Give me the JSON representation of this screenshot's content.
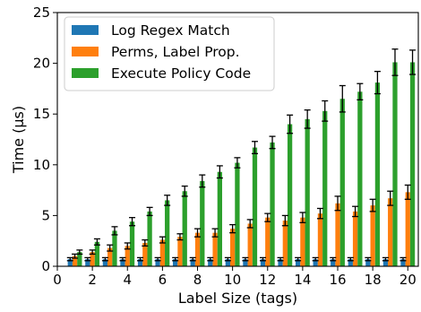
{
  "chart_data": {
    "type": "bar",
    "xlabel": "Label Size (tags)",
    "ylabel": "Time (µs)",
    "xlim": [
      0,
      20.6
    ],
    "ylim": [
      0,
      25
    ],
    "xticks": [
      "0",
      "2",
      "4",
      "6",
      "8",
      "10",
      "12",
      "14",
      "16",
      "18",
      "20"
    ],
    "yticks": [
      "0",
      "5",
      "10",
      "15",
      "20",
      "25"
    ],
    "grid": false,
    "legend_position": "top-left",
    "x": [
      1,
      2,
      3,
      4,
      5,
      6,
      7,
      8,
      9,
      10,
      11,
      12,
      13,
      14,
      15,
      16,
      17,
      18,
      19,
      20
    ],
    "series": [
      {
        "name": "Log Regex Match",
        "color": "#1f77b4",
        "values": [
          0.7,
          0.7,
          0.7,
          0.7,
          0.7,
          0.7,
          0.7,
          0.7,
          0.7,
          0.7,
          0.7,
          0.7,
          0.7,
          0.7,
          0.7,
          0.7,
          0.7,
          0.7,
          0.7,
          0.7
        ],
        "errors": [
          0.15,
          0.15,
          0.15,
          0.15,
          0.15,
          0.15,
          0.15,
          0.15,
          0.15,
          0.15,
          0.15,
          0.15,
          0.15,
          0.15,
          0.15,
          0.15,
          0.15,
          0.15,
          0.15,
          0.15
        ]
      },
      {
        "name": "Perms, Label Prop.",
        "color": "#ff7f0e",
        "values": [
          1.0,
          1.4,
          1.8,
          2.0,
          2.3,
          2.6,
          2.9,
          3.3,
          3.3,
          3.7,
          4.2,
          4.8,
          4.5,
          4.8,
          5.2,
          6.2,
          5.4,
          6.0,
          6.7,
          7.3
        ],
        "errors": [
          0.2,
          0.2,
          0.3,
          0.3,
          0.3,
          0.3,
          0.3,
          0.4,
          0.4,
          0.4,
          0.4,
          0.4,
          0.5,
          0.5,
          0.5,
          0.7,
          0.5,
          0.6,
          0.7,
          0.7
        ]
      },
      {
        "name": "Execute Policy Code",
        "color": "#2ca02c",
        "values": [
          1.4,
          2.4,
          3.5,
          4.4,
          5.4,
          6.5,
          7.4,
          8.4,
          9.3,
          10.2,
          11.7,
          12.2,
          14.0,
          14.5,
          15.3,
          16.5,
          17.2,
          18.1,
          20.1,
          20.1
        ],
        "errors": [
          0.2,
          0.3,
          0.4,
          0.4,
          0.4,
          0.5,
          0.5,
          0.6,
          0.6,
          0.5,
          0.6,
          0.6,
          0.9,
          0.9,
          1.0,
          1.3,
          0.8,
          1.1,
          1.3,
          1.2
        ]
      }
    ]
  }
}
